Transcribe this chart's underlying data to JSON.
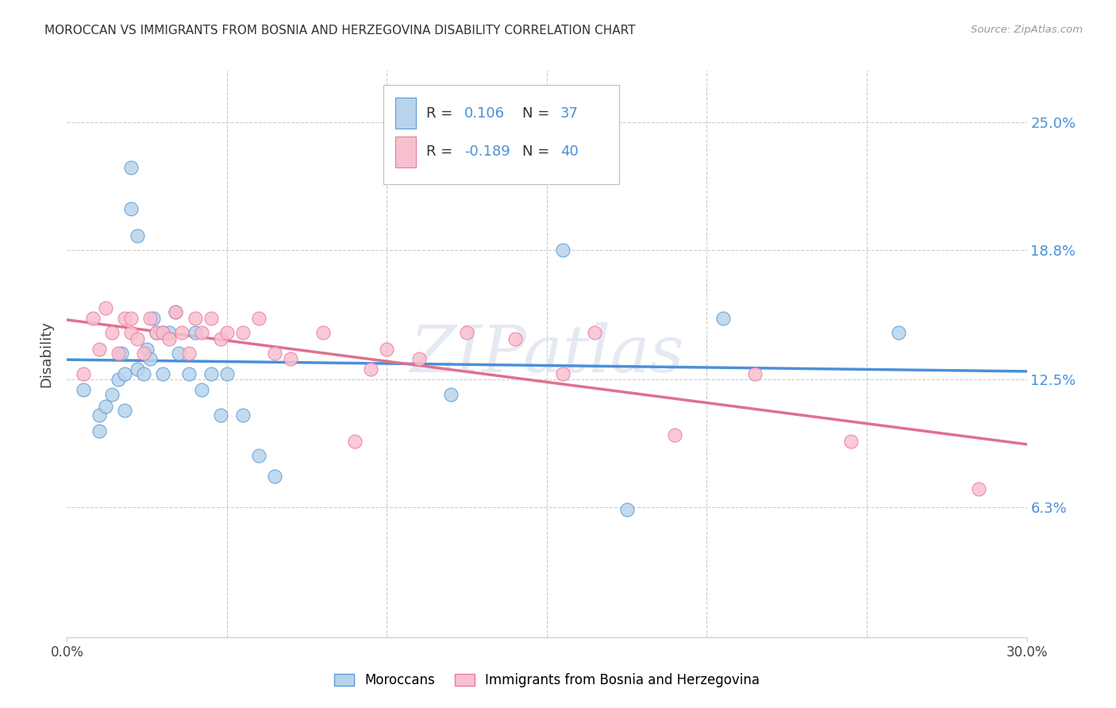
{
  "title": "MOROCCAN VS IMMIGRANTS FROM BOSNIA AND HERZEGOVINA DISABILITY CORRELATION CHART",
  "source": "Source: ZipAtlas.com",
  "ylabel": "Disability",
  "y_ticks": [
    0.063,
    0.125,
    0.188,
    0.25
  ],
  "y_tick_labels": [
    "6.3%",
    "12.5%",
    "18.8%",
    "25.0%"
  ],
  "x_range": [
    0.0,
    0.3
  ],
  "y_range": [
    0.0,
    0.275
  ],
  "R1": 0.106,
  "N1": 37,
  "R2": -0.189,
  "N2": 40,
  "color_moroccan_fill": "#b8d4ec",
  "color_moroccan_edge": "#5b9bd5",
  "color_bosnia_fill": "#f8c0ce",
  "color_bosnia_edge": "#e87aa0",
  "color_line1": "#4a90d9",
  "color_line2": "#e07090",
  "moroccan_x": [
    0.005,
    0.01,
    0.01,
    0.012,
    0.014,
    0.016,
    0.017,
    0.018,
    0.018,
    0.02,
    0.02,
    0.022,
    0.022,
    0.024,
    0.025,
    0.026,
    0.027,
    0.028,
    0.03,
    0.03,
    0.032,
    0.034,
    0.035,
    0.038,
    0.04,
    0.042,
    0.045,
    0.048,
    0.05,
    0.055,
    0.06,
    0.065,
    0.12,
    0.155,
    0.175,
    0.205,
    0.26
  ],
  "moroccan_y": [
    0.12,
    0.108,
    0.1,
    0.112,
    0.118,
    0.125,
    0.138,
    0.128,
    0.11,
    0.228,
    0.208,
    0.195,
    0.13,
    0.128,
    0.14,
    0.135,
    0.155,
    0.148,
    0.148,
    0.128,
    0.148,
    0.158,
    0.138,
    0.128,
    0.148,
    0.12,
    0.128,
    0.108,
    0.128,
    0.108,
    0.088,
    0.078,
    0.118,
    0.188,
    0.062,
    0.155,
    0.148
  ],
  "bosnia_x": [
    0.005,
    0.008,
    0.01,
    0.012,
    0.014,
    0.016,
    0.018,
    0.02,
    0.02,
    0.022,
    0.024,
    0.026,
    0.028,
    0.03,
    0.032,
    0.034,
    0.036,
    0.038,
    0.04,
    0.042,
    0.045,
    0.048,
    0.05,
    0.055,
    0.06,
    0.065,
    0.07,
    0.08,
    0.09,
    0.095,
    0.1,
    0.11,
    0.125,
    0.14,
    0.155,
    0.165,
    0.19,
    0.215,
    0.245,
    0.285
  ],
  "bosnia_y": [
    0.128,
    0.155,
    0.14,
    0.16,
    0.148,
    0.138,
    0.155,
    0.155,
    0.148,
    0.145,
    0.138,
    0.155,
    0.148,
    0.148,
    0.145,
    0.158,
    0.148,
    0.138,
    0.155,
    0.148,
    0.155,
    0.145,
    0.148,
    0.148,
    0.155,
    0.138,
    0.135,
    0.148,
    0.095,
    0.13,
    0.14,
    0.135,
    0.148,
    0.145,
    0.128,
    0.148,
    0.098,
    0.128,
    0.095,
    0.072
  ]
}
